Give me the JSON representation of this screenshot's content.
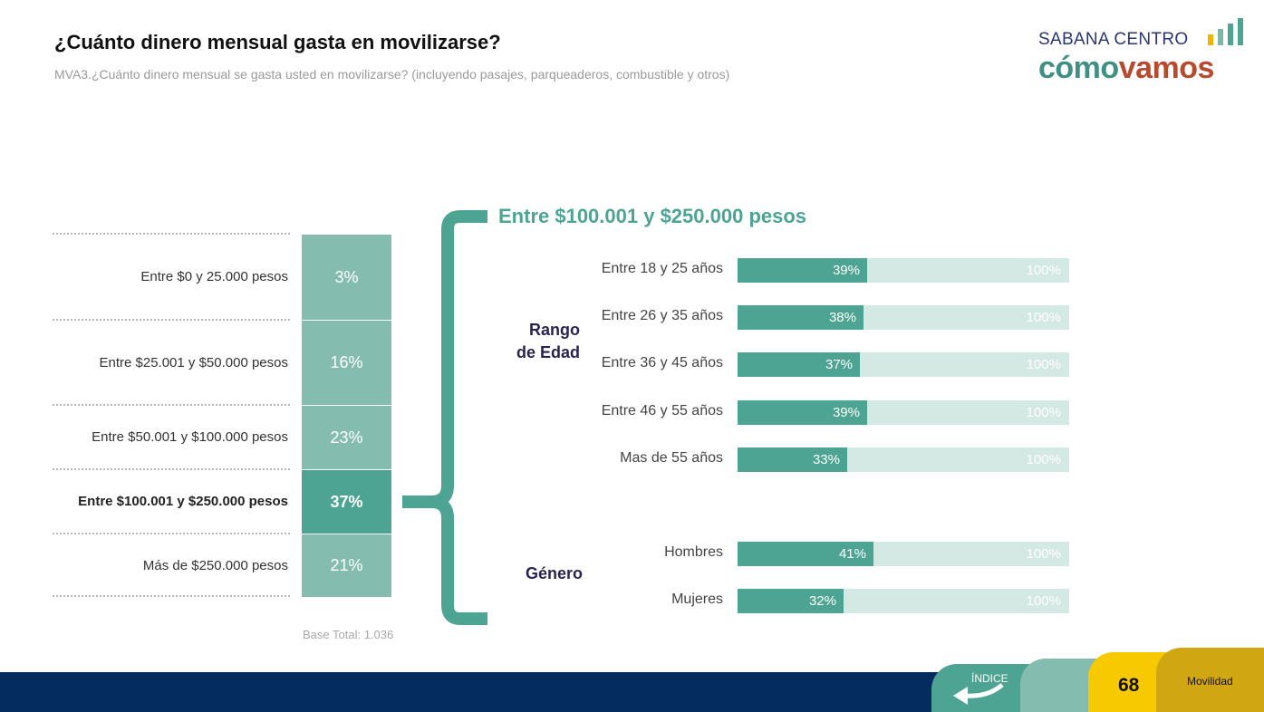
{
  "title": "¿Cuánto dinero mensual gasta en movilizarse?",
  "subtitle": "MVA3.¿Cuánto dinero mensual se gasta usted en movilizarse? (incluyendo pasajes, parqueaderos, combustible y otros)",
  "logo": {
    "top": "SABANA CENTRO",
    "main_a": "cómo",
    "main_b": "vamos"
  },
  "colors": {
    "accent": "#4ea493",
    "light": "#84bdb0",
    "track": "#d4e9e4",
    "navy": "#052c5f",
    "yellow": "#f7c900",
    "gold": "#d0a613"
  },
  "chart_data": [
    {
      "type": "bar",
      "orientation": "stacked-column",
      "categories": [
        "Entre $0 y 25.000 pesos",
        "Entre $25.001 y $50.000 pesos",
        "Entre $50.001 y $100.000 pesos",
        "Entre $100.001 y $250.000 pesos",
        "Más de $250.000 pesos"
      ],
      "values": [
        3,
        16,
        23,
        37,
        21
      ],
      "value_labels": [
        "3%",
        "16%",
        "23%",
        "37%",
        "21%"
      ],
      "highlighted_index": 3,
      "base_note": "Base Total: 1.036"
    },
    {
      "type": "bar",
      "orientation": "horizontal",
      "title": "Entre $100.001 y $250.000 pesos",
      "groups": [
        {
          "name": "Rango de Edad",
          "name_lines": [
            "Rango",
            "de Edad"
          ],
          "categories": [
            "Entre 18 y 25 años",
            "Entre 26 y 35 años",
            "Entre 36 y 45 años",
            "Entre 46 y 55 años",
            "Mas de 55 años"
          ],
          "values": [
            39,
            38,
            37,
            39,
            33
          ],
          "value_labels": [
            "39%",
            "38%",
            "37%",
            "39%",
            "33%"
          ]
        },
        {
          "name": "Género",
          "name_lines": [
            "Género"
          ],
          "categories": [
            "Hombres",
            "Mujeres"
          ],
          "values": [
            41,
            32
          ],
          "value_labels": [
            "41%",
            "32%"
          ]
        }
      ],
      "max_label": "100%",
      "xlim": [
        0,
        100
      ]
    }
  ],
  "footer": {
    "indice": "ÍNDICE",
    "page": "68",
    "section": "Movilidad"
  }
}
